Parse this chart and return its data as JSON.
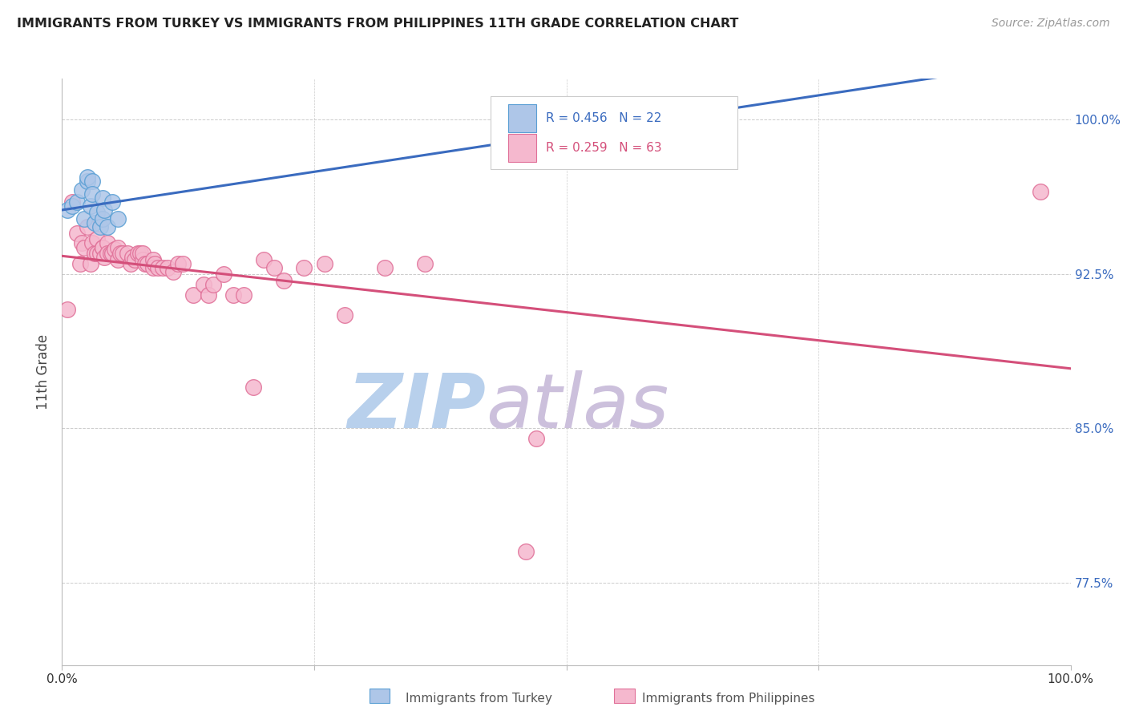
{
  "title": "IMMIGRANTS FROM TURKEY VS IMMIGRANTS FROM PHILIPPINES 11TH GRADE CORRELATION CHART",
  "source": "Source: ZipAtlas.com",
  "ylabel": "11th Grade",
  "ylabel_ticks": [
    "100.0%",
    "92.5%",
    "85.0%",
    "77.5%"
  ],
  "ylabel_tick_vals": [
    1.0,
    0.925,
    0.85,
    0.775
  ],
  "xlim": [
    0.0,
    1.0
  ],
  "ylim": [
    0.735,
    1.02
  ],
  "turkey_color": "#aec6e8",
  "turkey_edge": "#5a9fd4",
  "philippines_color": "#f5b8ce",
  "philippines_edge": "#e07098",
  "turkey_line_color": "#3a6bbf",
  "philippines_line_color": "#d44f7a",
  "watermark_zip_color": "#c8daf0",
  "watermark_atlas_color": "#d8c8e8",
  "turkey_x": [
    0.005,
    0.01,
    0.015,
    0.02,
    0.022,
    0.025,
    0.025,
    0.028,
    0.03,
    0.03,
    0.032,
    0.035,
    0.038,
    0.04,
    0.04,
    0.042,
    0.045,
    0.05,
    0.055,
    0.6,
    0.635,
    0.65
  ],
  "turkey_y": [
    0.956,
    0.958,
    0.96,
    0.966,
    0.952,
    0.97,
    0.972,
    0.958,
    0.97,
    0.964,
    0.95,
    0.955,
    0.948,
    0.952,
    0.962,
    0.956,
    0.948,
    0.96,
    0.952,
    1.003,
    1.004,
    1.003
  ],
  "philippines_x": [
    0.005,
    0.01,
    0.015,
    0.018,
    0.02,
    0.022,
    0.025,
    0.028,
    0.03,
    0.032,
    0.035,
    0.035,
    0.038,
    0.04,
    0.04,
    0.042,
    0.045,
    0.045,
    0.048,
    0.05,
    0.052,
    0.055,
    0.055,
    0.058,
    0.06,
    0.065,
    0.068,
    0.07,
    0.072,
    0.075,
    0.078,
    0.08,
    0.08,
    0.082,
    0.085,
    0.09,
    0.09,
    0.092,
    0.095,
    0.1,
    0.105,
    0.11,
    0.115,
    0.12,
    0.13,
    0.14,
    0.145,
    0.15,
    0.16,
    0.17,
    0.18,
    0.19,
    0.2,
    0.21,
    0.22,
    0.24,
    0.26,
    0.28,
    0.32,
    0.36,
    0.46,
    0.47,
    0.97
  ],
  "philippines_y": [
    0.908,
    0.96,
    0.945,
    0.93,
    0.94,
    0.938,
    0.948,
    0.93,
    0.94,
    0.935,
    0.942,
    0.935,
    0.935,
    0.938,
    0.938,
    0.933,
    0.94,
    0.935,
    0.935,
    0.935,
    0.937,
    0.938,
    0.932,
    0.935,
    0.935,
    0.935,
    0.93,
    0.933,
    0.932,
    0.935,
    0.935,
    0.932,
    0.935,
    0.93,
    0.93,
    0.932,
    0.928,
    0.93,
    0.928,
    0.928,
    0.928,
    0.926,
    0.93,
    0.93,
    0.915,
    0.92,
    0.915,
    0.92,
    0.925,
    0.915,
    0.915,
    0.87,
    0.932,
    0.928,
    0.922,
    0.928,
    0.93,
    0.905,
    0.928,
    0.93,
    0.79,
    0.845,
    0.965
  ]
}
